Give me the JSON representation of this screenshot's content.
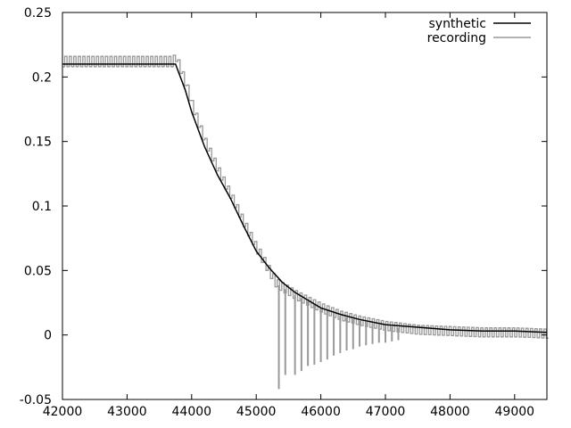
{
  "chart_data": {
    "type": "line",
    "title": "",
    "xlabel": "",
    "ylabel": "",
    "xlim": [
      42000,
      49500
    ],
    "ylim": [
      -0.05,
      0.25
    ],
    "x_ticks": [
      42000,
      43000,
      44000,
      45000,
      46000,
      47000,
      48000,
      49000
    ],
    "y_ticks": [
      -0.05,
      0,
      0.05,
      0.1,
      0.15,
      0.2,
      0.25
    ],
    "x_tick_labels": [
      "42000",
      "43000",
      "44000",
      "45000",
      "46000",
      "47000",
      "48000",
      "49000"
    ],
    "y_tick_labels": [
      "-0.05",
      "0",
      "0.05",
      "0.1",
      "0.15",
      "0.2",
      "0.25"
    ],
    "grid": false,
    "legend_position": "top-right",
    "series": [
      {
        "name": "synthetic",
        "color": "#000000",
        "x": [
          42000,
          42500,
          43000,
          43500,
          43750,
          43900,
          44000,
          44200,
          44400,
          44600,
          44800,
          45000,
          45200,
          45400,
          45600,
          45800,
          46000,
          46300,
          46600,
          47000,
          47500,
          48000,
          48500,
          49000,
          49500
        ],
        "y": [
          0.21,
          0.21,
          0.21,
          0.21,
          0.21,
          0.19,
          0.173,
          0.146,
          0.124,
          0.106,
          0.085,
          0.065,
          0.052,
          0.041,
          0.033,
          0.027,
          0.021,
          0.016,
          0.012,
          0.008,
          0.006,
          0.004,
          0.003,
          0.003,
          0.002
        ]
      },
      {
        "name": "recording",
        "color": "#999999",
        "x": [
          42000,
          42500,
          43000,
          43500,
          43700,
          43750,
          43900,
          44000,
          44200,
          44400,
          44600,
          44800,
          45000,
          45300,
          45400,
          45600,
          45800,
          46000,
          46300,
          46600,
          47000,
          47500,
          48000,
          48500,
          49000,
          49500
        ],
        "y": [
          0.212,
          0.212,
          0.212,
          0.212,
          0.212,
          0.215,
          0.195,
          0.178,
          0.15,
          0.128,
          0.108,
          0.087,
          0.067,
          0.04,
          0.037,
          0.031,
          0.026,
          0.021,
          0.015,
          0.011,
          0.007,
          0.004,
          0.003,
          0.002,
          0.002,
          0.001
        ],
        "spike_x": [
          45350,
          45450,
          45600,
          45700,
          45800,
          45900,
          46000,
          46100,
          46200,
          46300,
          46400,
          46500,
          46600,
          46700,
          46800,
          46900,
          47000,
          47100,
          47200
        ],
        "spike_y": [
          -0.042,
          -0.031,
          -0.031,
          -0.028,
          -0.024,
          -0.023,
          -0.021,
          -0.019,
          -0.016,
          -0.014,
          -0.012,
          -0.011,
          -0.009,
          -0.008,
          -0.007,
          -0.006,
          -0.006,
          -0.005,
          -0.004
        ]
      }
    ]
  }
}
